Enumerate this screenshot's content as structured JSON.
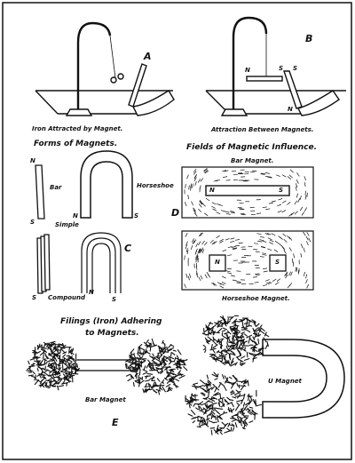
{
  "panels": {
    "a": {
      "letter": "A",
      "caption": "Iron Attracted by Magnet."
    },
    "b": {
      "letter": "B",
      "caption": "Attraction Between Magnets.",
      "pole_n": "N",
      "pole_s1": "S",
      "pole_s2": "S",
      "pole_n2": "N"
    },
    "c": {
      "letter": "C",
      "title": "Forms of Magnets.",
      "bar_label": "Bar",
      "horseshoe_label": "Horseshoe",
      "simple_label": "Simple",
      "compound_label": "Compound",
      "poles": {
        "n": "N",
        "s": "S"
      }
    },
    "d": {
      "letter": "D",
      "title": "Fields of Magnetic Influence.",
      "bar_caption": "Bar Magnet.",
      "horseshoe_caption": "Horseshoe Magnet.",
      "poles": {
        "n": "N",
        "s": "S"
      }
    },
    "e": {
      "letter": "E",
      "title_line1": "Filings (Iron) Adhering",
      "title_line2": "to Magnets.",
      "bar_label": "Bar Magnet",
      "u_label": "U Magnet"
    }
  },
  "colors": {
    "ink": "#111111",
    "paper": "#ffffff"
  }
}
